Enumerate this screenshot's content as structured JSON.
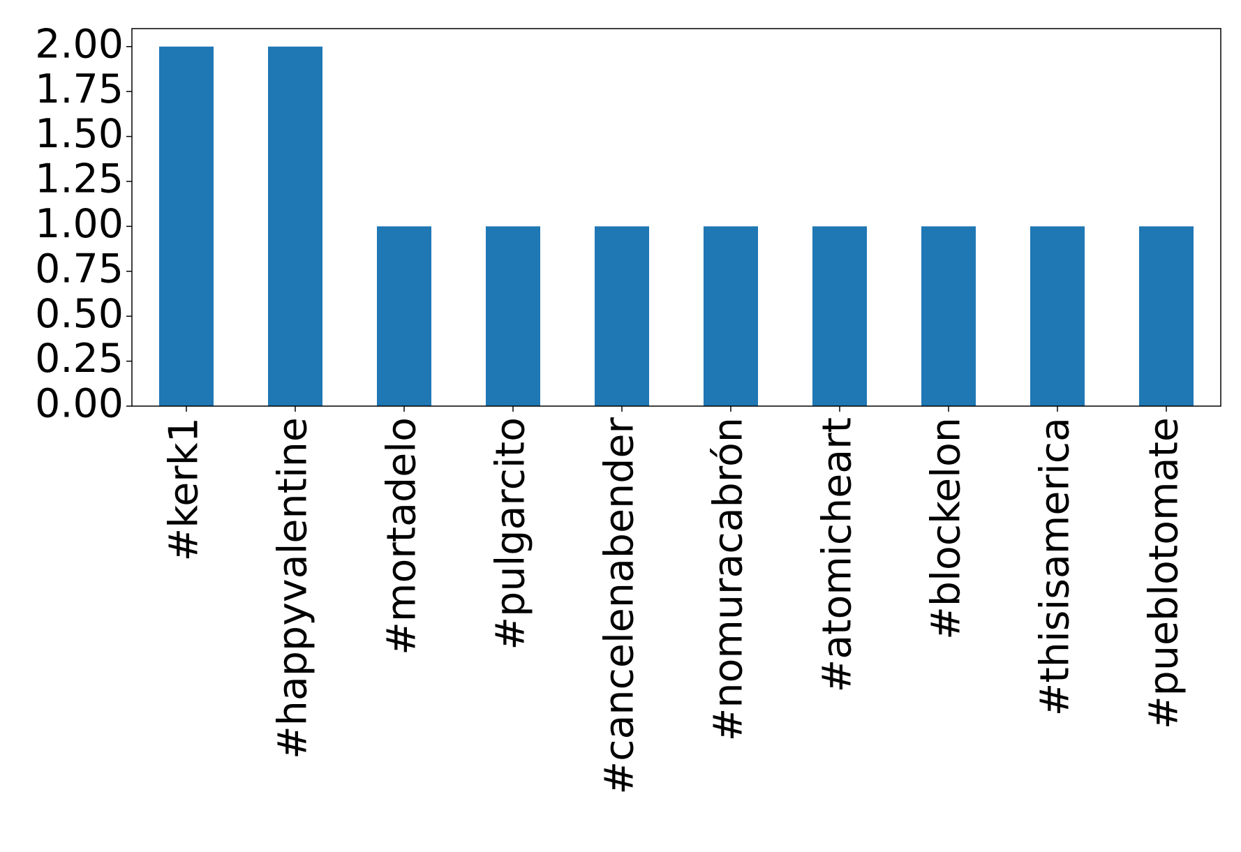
{
  "chart_data": {
    "type": "bar",
    "categories": [
      "#kerk1",
      "#happyvalentine",
      "#mortadelo",
      "#pulgarcito",
      "#cancelenabender",
      "#nomuracabrón",
      "#atomicheart",
      "#blockelon",
      "#thisisamerica",
      "#pueblotomate"
    ],
    "values": [
      2,
      2,
      1,
      1,
      1,
      1,
      1,
      1,
      1,
      1
    ],
    "color": "#1f77b4",
    "ylim": [
      0,
      2.1
    ],
    "yticks": [
      {
        "value": 0,
        "label": "0.00"
      },
      {
        "value": 0.25,
        "label": "0.25"
      },
      {
        "value": 0.5,
        "label": "0.50"
      },
      {
        "value": 0.75,
        "label": "0.75"
      },
      {
        "value": 1,
        "label": "1.00"
      },
      {
        "value": 1.25,
        "label": "1.25"
      },
      {
        "value": 1.5,
        "label": "1.50"
      },
      {
        "value": 1.75,
        "label": "1.75"
      },
      {
        "value": 2,
        "label": "2.00"
      }
    ],
    "grid": false
  }
}
